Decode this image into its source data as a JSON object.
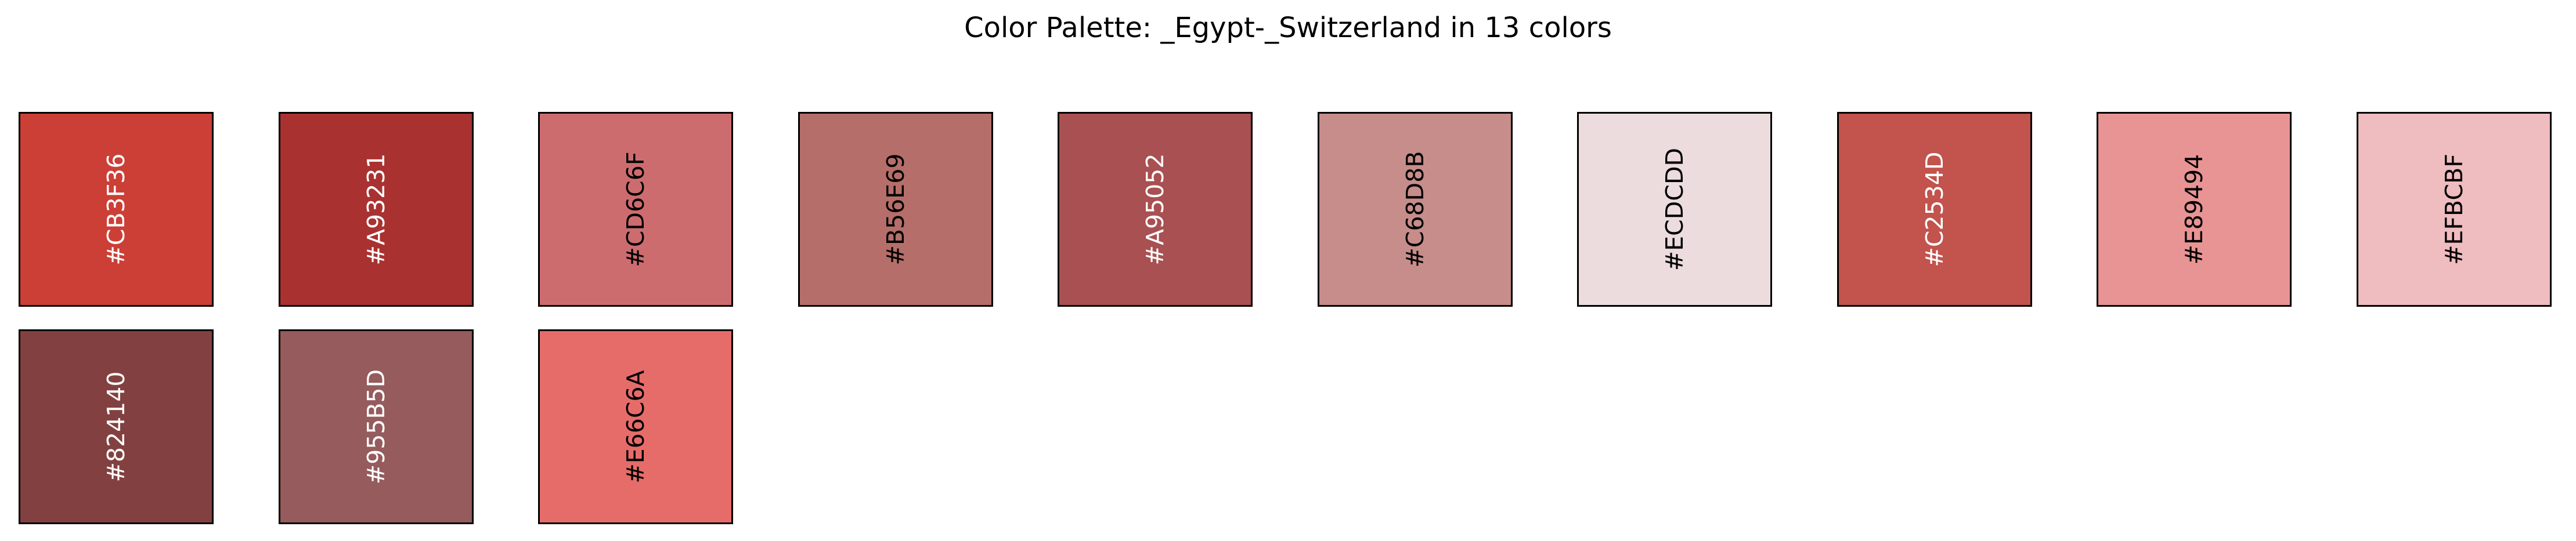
{
  "chart_data": {
    "type": "palette",
    "title": "Color Palette: _Egypt-_Switzerland in 13 colors",
    "count": 13,
    "swatches": [
      {
        "hex": "#CB3F36",
        "label": "#CB3F36",
        "text_color": "#ffffff"
      },
      {
        "hex": "#A93231",
        "label": "#A93231",
        "text_color": "#ffffff"
      },
      {
        "hex": "#CD6C6F",
        "label": "#CD6C6F",
        "text_color": "#000000"
      },
      {
        "hex": "#B56E69",
        "label": "#B56E69",
        "text_color": "#000000"
      },
      {
        "hex": "#A95052",
        "label": "#A95052",
        "text_color": "#ffffff"
      },
      {
        "hex": "#C68D8B",
        "label": "#C68D8B",
        "text_color": "#000000"
      },
      {
        "hex": "#ECDCDD",
        "label": "#ECDCDD",
        "text_color": "#000000"
      },
      {
        "hex": "#C2534D",
        "label": "#C2534D",
        "text_color": "#ffffff"
      },
      {
        "hex": "#E89494",
        "label": "#E89494",
        "text_color": "#000000"
      },
      {
        "hex": "#EFBCBF",
        "label": "#EFBCBF",
        "text_color": "#000000"
      },
      {
        "hex": "#824140",
        "label": "#824140",
        "text_color": "#ffffff"
      },
      {
        "hex": "#955B5D",
        "label": "#955B5D",
        "text_color": "#ffffff"
      },
      {
        "hex": "#E66C6A",
        "label": "#E66C6A",
        "text_color": "#000000"
      }
    ]
  }
}
